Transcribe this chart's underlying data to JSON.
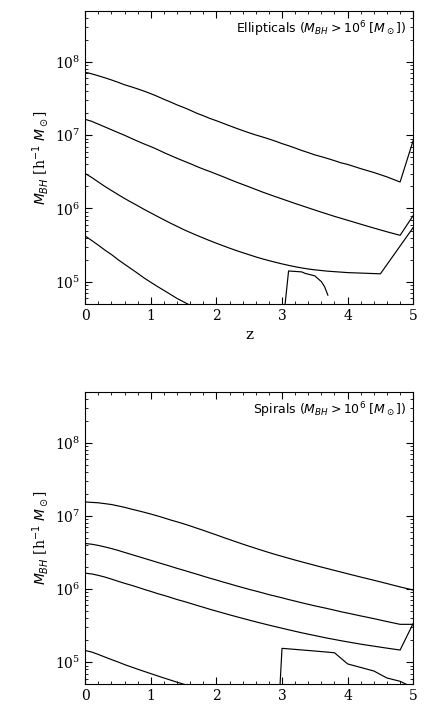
{
  "ylabel": "$M_{BH}$ [h$^{-1}$ $M_\\odot$]",
  "xlabel": "z",
  "xlim": [
    0,
    5
  ],
  "ylim": [
    50000.0,
    500000000.0
  ],
  "ellipticals": {
    "line1_z": [
      0.0,
      0.05,
      0.1,
      0.15,
      0.2,
      0.3,
      0.4,
      0.5,
      0.6,
      0.7,
      0.8,
      0.9,
      1.0,
      1.1,
      1.2,
      1.3,
      1.4,
      1.5,
      1.6,
      1.7,
      1.8,
      1.9,
      2.0,
      2.1,
      2.2,
      2.3,
      2.4,
      2.5,
      2.6,
      2.7,
      2.8,
      2.9,
      3.0,
      3.1,
      3.2,
      3.3,
      3.4,
      3.5,
      3.6,
      3.7,
      3.8,
      3.9,
      4.0,
      4.2,
      4.4,
      4.6,
      4.8,
      5.0
    ],
    "line1_y": [
      72000000.0,
      71000000.0,
      69000000.0,
      67000000.0,
      65000000.0,
      61000000.0,
      57000000.0,
      53000000.0,
      49000000.0,
      46000000.0,
      43000000.0,
      40000000.0,
      37000000.0,
      34000000.0,
      31000000.0,
      28500000.0,
      26000000.0,
      24000000.0,
      22000000.0,
      20000000.0,
      18500000.0,
      17000000.0,
      15800000.0,
      14600000.0,
      13500000.0,
      12500000.0,
      11600000.0,
      10800000.0,
      10100000.0,
      9500000.0,
      8900000.0,
      8300000.0,
      7700000.0,
      7200000.0,
      6700000.0,
      6200000.0,
      5800000.0,
      5400000.0,
      5100000.0,
      4800000.0,
      4500000.0,
      4200000.0,
      4000000.0,
      3500000.0,
      3100000.0,
      2700000.0,
      2300000.0,
      8500000.0
    ],
    "line2_z": [
      0.0,
      0.05,
      0.1,
      0.15,
      0.2,
      0.3,
      0.4,
      0.5,
      0.6,
      0.7,
      0.8,
      0.9,
      1.0,
      1.1,
      1.2,
      1.3,
      1.4,
      1.5,
      1.6,
      1.7,
      1.8,
      1.9,
      2.0,
      2.1,
      2.2,
      2.3,
      2.4,
      2.5,
      2.6,
      2.7,
      2.8,
      2.9,
      3.0,
      3.2,
      3.4,
      3.6,
      3.8,
      4.0,
      4.2,
      4.4,
      4.6,
      4.8,
      5.0
    ],
    "line2_y": [
      16500000.0,
      16000000.0,
      15500000.0,
      14800000.0,
      14200000.0,
      13000000.0,
      11900000.0,
      10900000.0,
      10000000.0,
      9100000.0,
      8300000.0,
      7600000.0,
      7000000.0,
      6400000.0,
      5800000.0,
      5300000.0,
      4850000.0,
      4450000.0,
      4100000.0,
      3750000.0,
      3450000.0,
      3200000.0,
      2950000.0,
      2720000.0,
      2500000.0,
      2300000.0,
      2130000.0,
      1970000.0,
      1820000.0,
      1680000.0,
      1560000.0,
      1450000.0,
      1350000.0,
      1170000.0,
      1020000.0,
      890000.0,
      780000.0,
      690000.0,
      610000.0,
      540000.0,
      480000.0,
      430000.0,
      800000.0
    ],
    "line3_z": [
      0.0,
      0.1,
      0.2,
      0.3,
      0.4,
      0.5,
      0.6,
      0.7,
      0.8,
      0.9,
      1.0,
      1.1,
      1.2,
      1.3,
      1.4,
      1.5,
      1.6,
      1.7,
      1.8,
      1.9,
      2.0,
      2.1,
      2.2,
      2.3,
      2.4,
      2.5,
      2.6,
      2.7,
      2.8,
      2.9,
      3.0,
      3.1,
      3.2,
      3.3,
      3.4,
      3.5,
      3.6,
      3.7,
      3.8,
      3.9,
      4.0,
      4.1,
      4.2,
      4.3,
      4.4,
      4.5,
      5.0
    ],
    "line3_y": [
      3000000.0,
      2650000.0,
      2300000.0,
      2000000.0,
      1760000.0,
      1550000.0,
      1370000.0,
      1220000.0,
      1090000.0,
      970000.0,
      870000.0,
      780000.0,
      700000.0,
      630000.0,
      570000.0,
      515000.0,
      470000.0,
      430000.0,
      395000.0,
      363000.0,
      335000.0,
      310000.0,
      287000.0,
      267000.0,
      249000.0,
      233000.0,
      218000.0,
      205000.0,
      194000.0,
      184000.0,
      175000.0,
      167000.0,
      160000.0,
      154000.0,
      149000.0,
      145000.0,
      142000.0,
      139000.0,
      137000.0,
      135000.0,
      133000.0,
      132000.0,
      131000.0,
      130000.0,
      129000.0,
      128000.0,
      550000.0
    ],
    "line4_z": [
      0.0,
      0.1,
      0.2,
      0.3,
      0.4,
      0.5,
      0.6,
      0.7,
      0.8,
      0.9,
      1.0,
      1.1,
      1.2,
      1.3,
      1.4,
      1.5,
      1.6,
      1.7,
      1.8,
      1.9,
      2.0,
      2.1,
      2.2,
      2.3,
      2.4,
      2.5,
      2.6,
      2.7,
      2.8,
      2.9,
      3.0,
      3.1,
      3.2,
      3.3,
      3.35,
      3.5,
      3.6,
      3.65,
      3.7
    ],
    "line4_y": [
      420000.0,
      365000.0,
      315000.0,
      270000.0,
      235000.0,
      200000.0,
      173000.0,
      150000.0,
      130000.0,
      112000.0,
      98000.0,
      86000.0,
      76000.0,
      67000.0,
      59000.0,
      53000.0,
      47500.0,
      43000.0,
      39000.0,
      35500.0,
      32500.0,
      29800.0,
      27400.0,
      25400.0,
      23800.0,
      22500.0,
      21500.0,
      20800.0,
      20200.0,
      19800.0,
      19500.0,
      140000.0,
      138000.0,
      136000.0,
      130000.0,
      120000.0,
      100000.0,
      85000.0,
      65000.0
    ]
  },
  "spirals": {
    "line1_z": [
      0.0,
      0.1,
      0.2,
      0.3,
      0.4,
      0.5,
      0.6,
      0.7,
      0.8,
      0.9,
      1.0,
      1.1,
      1.2,
      1.3,
      1.4,
      1.5,
      1.6,
      1.7,
      1.8,
      1.9,
      2.0,
      2.1,
      2.2,
      2.3,
      2.4,
      2.5,
      2.6,
      2.7,
      2.8,
      2.9,
      3.0,
      3.2,
      3.4,
      3.6,
      3.8,
      4.0,
      4.2,
      4.4,
      4.6,
      4.8,
      5.0
    ],
    "line1_y": [
      15500000.0,
      15300000.0,
      15100000.0,
      14700000.0,
      14300000.0,
      13700000.0,
      13100000.0,
      12400000.0,
      11800000.0,
      11200000.0,
      10600000.0,
      10000000.0,
      9400000.0,
      8800000.0,
      8300000.0,
      7800000.0,
      7300000.0,
      6800000.0,
      6350000.0,
      5900000.0,
      5500000.0,
      5100000.0,
      4750000.0,
      4420000.0,
      4120000.0,
      3850000.0,
      3600000.0,
      3370000.0,
      3160000.0,
      2970000.0,
      2800000.0,
      2490000.0,
      2230000.0,
      2000000.0,
      1800000.0,
      1620000.0,
      1460000.0,
      1320000.0,
      1190000.0,
      1070000.0,
      970000.0
    ],
    "line2_z": [
      0.0,
      0.1,
      0.2,
      0.3,
      0.4,
      0.5,
      0.6,
      0.7,
      0.8,
      0.9,
      1.0,
      1.1,
      1.2,
      1.3,
      1.4,
      1.5,
      1.6,
      1.7,
      1.8,
      1.9,
      2.0,
      2.1,
      2.2,
      2.3,
      2.4,
      2.5,
      2.6,
      2.7,
      2.8,
      2.9,
      3.0,
      3.1,
      3.2,
      3.3,
      3.4,
      3.5,
      3.6,
      3.7,
      3.8,
      3.9,
      4.0,
      4.2,
      4.4,
      4.6,
      4.8,
      5.0
    ],
    "line2_y": [
      4200000.0,
      4100000.0,
      3950000.0,
      3770000.0,
      3580000.0,
      3380000.0,
      3170000.0,
      2980000.0,
      2800000.0,
      2630000.0,
      2470000.0,
      2320000.0,
      2180000.0,
      2050000.0,
      1920000.0,
      1810000.0,
      1700000.0,
      1600000.0,
      1500000.0,
      1410000.0,
      1330000.0,
      1250000.0,
      1180000.0,
      1110000.0,
      1050000.0,
      990000.0,
      940000.0,
      890000.0,
      840000.0,
      800000.0,
      760000.0,
      720000.0,
      685000.0,
      650000.0,
      620000.0,
      590000.0,
      565000.0,
      540000.0,
      515000.0,
      490000.0,
      470000.0,
      430000.0,
      395000.0,
      360000.0,
      330000.0,
      330000.0
    ],
    "line3_z": [
      0.0,
      0.1,
      0.2,
      0.3,
      0.4,
      0.5,
      0.6,
      0.7,
      0.8,
      0.9,
      1.0,
      1.1,
      1.2,
      1.3,
      1.4,
      1.5,
      1.6,
      1.7,
      1.8,
      1.9,
      2.0,
      2.2,
      2.4,
      2.6,
      2.8,
      3.0,
      3.1,
      3.2,
      3.3,
      3.4,
      3.5,
      3.6,
      3.7,
      3.8,
      3.9,
      4.0,
      4.2,
      4.4,
      4.6,
      4.8,
      5.0
    ],
    "line3_y": [
      1650000.0,
      1610000.0,
      1540000.0,
      1460000.0,
      1370000.0,
      1280000.0,
      1200000.0,
      1130000.0,
      1060000.0,
      990000.0,
      930000.0,
      870000.0,
      820000.0,
      770000.0,
      720000.0,
      680000.0,
      640000.0,
      600000.0,
      565000.0,
      530000.0,
      500000.0,
      445000.0,
      398000.0,
      357000.0,
      322000.0,
      292000.0,
      278000.0,
      265000.0,
      253000.0,
      242000.0,
      232000.0,
      222000.0,
      213000.0,
      205000.0,
      197000.0,
      190000.0,
      177000.0,
      166000.0,
      156000.0,
      147000.0,
      340000.0
    ],
    "line4_z": [
      0.0,
      0.1,
      0.2,
      0.3,
      0.4,
      0.5,
      0.6,
      0.7,
      0.8,
      0.9,
      1.0,
      1.2,
      1.4,
      1.6,
      1.8,
      2.0,
      2.2,
      2.4,
      2.6,
      2.8,
      2.95,
      3.0,
      3.2,
      3.4,
      3.6,
      3.8,
      4.0,
      4.2,
      4.4,
      4.45,
      4.5,
      4.6,
      4.8,
      5.0
    ],
    "line4_y": [
      145000.0,
      138000.0,
      128000.0,
      118000.0,
      109000.0,
      101000.0,
      93000.0,
      86500.0,
      80500.0,
      75000.0,
      70000.0,
      61000.0,
      53500.0,
      47200.0,
      42000.0,
      37500.0,
      33600.0,
      30300.0,
      27400.0,
      24900.0,
      23000.0,
      155000.0,
      150000.0,
      145000.0,
      140000.0,
      135000.0,
      95000.0,
      85000.0,
      76000.0,
      72000.0,
      68000.0,
      61000.0,
      55000.0,
      45000.0
    ]
  }
}
